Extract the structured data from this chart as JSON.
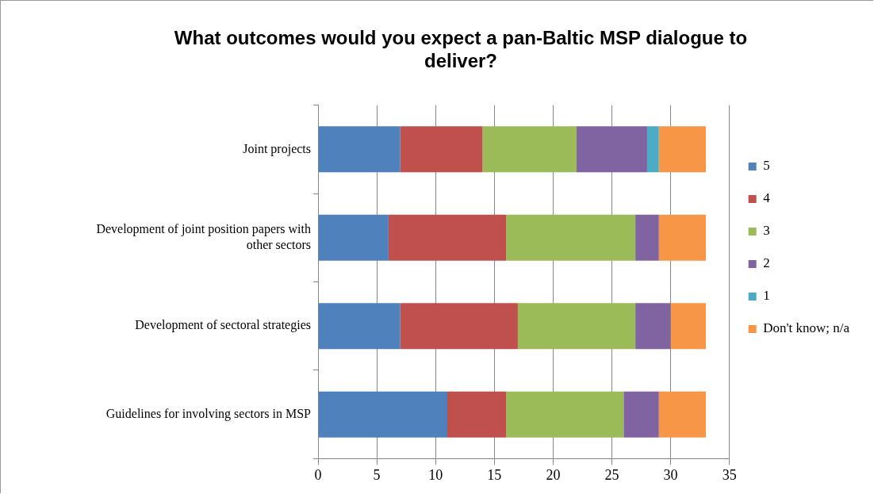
{
  "chart_data": {
    "type": "bar",
    "orientation": "horizontal",
    "stacked": true,
    "title": "What outcomes would you expect a pan-Baltic MSP dialogue to deliver?",
    "categories": [
      "Joint projects",
      "Development of joint position papers with other sectors",
      "Development of sectoral strategies",
      "Guidelines for involving sectors in MSP"
    ],
    "series": [
      {
        "name": "5",
        "color": "#4f81bd",
        "values": [
          7,
          6,
          7,
          11
        ]
      },
      {
        "name": "4",
        "color": "#c0504d",
        "values": [
          7,
          10,
          10,
          5
        ]
      },
      {
        "name": "3",
        "color": "#9bbb59",
        "values": [
          8,
          11,
          10,
          10
        ]
      },
      {
        "name": "2",
        "color": "#8064a2",
        "values": [
          6,
          2,
          3,
          3
        ]
      },
      {
        "name": "1",
        "color": "#4bacc6",
        "values": [
          1,
          0,
          0,
          0
        ]
      },
      {
        "name": "Don't know; n/a",
        "color": "#f79646",
        "values": [
          4,
          4,
          3,
          4
        ]
      }
    ],
    "xlim": [
      0,
      35
    ],
    "xticks": [
      0,
      5,
      10,
      15,
      20,
      25,
      30,
      35
    ],
    "grid": "x",
    "legend": "right"
  }
}
